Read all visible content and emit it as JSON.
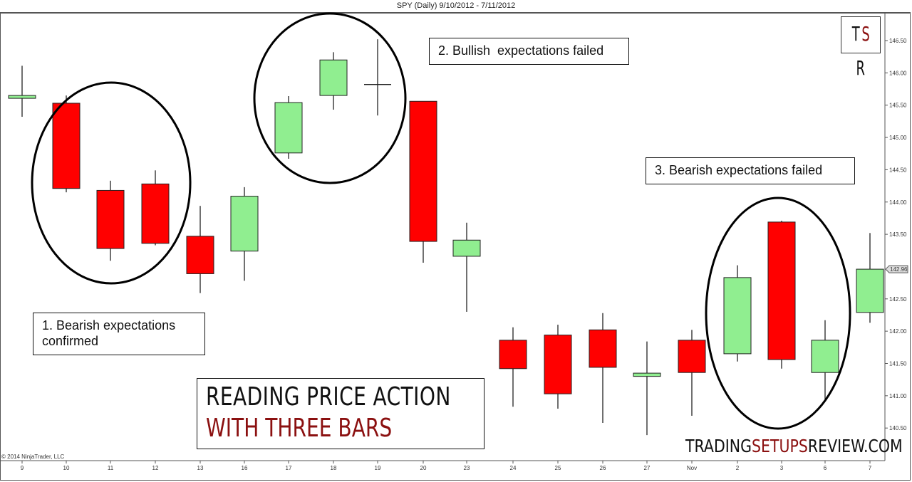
{
  "header": {
    "title": "SPY (Daily)  9/10/2012 - 7/11/2012"
  },
  "logo": {
    "t": "T",
    "s": "S",
    "r": "R"
  },
  "banner": {
    "line1": "READING PRICE ACTION",
    "line2": "WITH THREE BARS"
  },
  "website": {
    "part1": "TRADING",
    "part2": "SETUPS",
    "part3": "REVIEW.COM"
  },
  "copyright": "© 2014 NinjaTrader, LLC",
  "annotations": [
    {
      "text": "1. Bearish expectations confirmed"
    },
    {
      "text": "2. Bullish  expectations failed"
    },
    {
      "text": "3. Bearish expectations failed"
    }
  ],
  "colors": {
    "up": "#90ee90",
    "down": "#ff0000",
    "outline": "#111111",
    "brand_red": "#8b1010"
  },
  "last_price_marker": "142.96",
  "chart_data": {
    "type": "candlestick",
    "title": "SPY (Daily)  9/10/2012 - 7/11/2012",
    "xlabel": "",
    "ylabel": "",
    "ylim": [
      140.25,
      146.85
    ],
    "y_ticks": [
      "146.50",
      "146.00",
      "145.50",
      "145.00",
      "144.50",
      "144.00",
      "143.50",
      "142.50",
      "142.00",
      "141.50",
      "141.00",
      "140.50"
    ],
    "grid": false,
    "categories": [
      "9",
      "10",
      "11",
      "12",
      "13",
      "16",
      "17",
      "18",
      "19",
      "20",
      "23",
      "24",
      "25",
      "26",
      "27",
      "Nov",
      "2",
      "3",
      "6",
      "7"
    ],
    "open": [
      145.62,
      145.53,
      144.18,
      144.28,
      143.47,
      143.24,
      144.76,
      145.65,
      145.82,
      145.56,
      143.16,
      141.86,
      141.94,
      142.02,
      141.3,
      141.86,
      141.65,
      143.69,
      141.36,
      142.29
    ],
    "high": [
      146.11,
      145.65,
      144.33,
      144.49,
      143.94,
      144.23,
      145.64,
      146.32,
      146.52,
      145.56,
      143.68,
      142.06,
      142.1,
      142.28,
      141.84,
      142.02,
      143.02,
      143.71,
      142.17,
      143.52
    ],
    "low": [
      145.32,
      144.15,
      143.09,
      143.33,
      142.59,
      142.78,
      144.67,
      145.43,
      145.34,
      143.06,
      142.3,
      140.83,
      140.8,
      140.58,
      140.39,
      140.69,
      141.53,
      141.42,
      140.95,
      142.13
    ],
    "close": [
      145.65,
      144.21,
      143.28,
      143.36,
      142.89,
      144.09,
      145.54,
      146.2,
      145.82,
      143.39,
      143.41,
      141.42,
      141.03,
      141.44,
      141.35,
      141.36,
      142.83,
      141.56,
      141.86,
      142.96
    ],
    "annotations": [
      {
        "label": "1. Bearish expectations confirmed",
        "bars": [
          "10",
          "11",
          "12"
        ]
      },
      {
        "label": "2. Bullish  expectations failed",
        "bars": [
          "17",
          "18",
          "19"
        ]
      },
      {
        "label": "3. Bearish expectations failed",
        "bars": [
          "2",
          "3",
          "6"
        ]
      }
    ]
  }
}
